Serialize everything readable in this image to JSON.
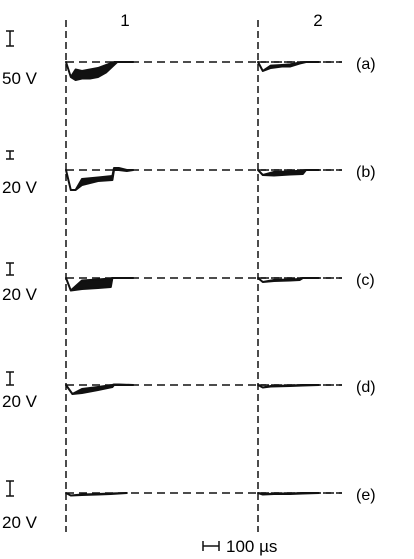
{
  "chart_data": {
    "type": "line",
    "title": "",
    "columns": [
      "1",
      "2"
    ],
    "rows": [
      "(a)",
      "(b)",
      "(c)",
      "(d)",
      "(e)"
    ],
    "vertical_scale_labels": [
      "50 V",
      "20 V",
      "20 V",
      "20 V",
      "20 V"
    ],
    "time_scale_label": "100 µs",
    "grid": false,
    "colors": {
      "trace": "#111111",
      "guide": "#111111",
      "background": "#ffffff"
    },
    "panels": [
      {
        "row": "(a)",
        "column": "1",
        "scale_v": 50,
        "x_us": [
          0,
          30,
          60,
          100,
          150,
          200,
          250,
          300,
          320,
          360,
          420
        ],
        "y_min_v": [
          0,
          -50,
          -60,
          -55,
          -55,
          -50,
          -35,
          -10,
          0,
          0,
          0
        ],
        "y_max_v": [
          0,
          -50,
          -25,
          -30,
          -25,
          -20,
          -10,
          0,
          0,
          0,
          0
        ]
      },
      {
        "row": "(a)",
        "column": "2",
        "scale_v": 50,
        "x_us": [
          0,
          30,
          80,
          150,
          200,
          260,
          300,
          380
        ],
        "y_min_v": [
          0,
          -30,
          -20,
          -15,
          -15,
          -5,
          0,
          0
        ],
        "y_max_v": [
          0,
          -30,
          -12,
          -10,
          -8,
          -2,
          0,
          0
        ]
      },
      {
        "row": "(b)",
        "column": "1",
        "scale_v": 20,
        "x_us": [
          0,
          30,
          60,
          100,
          200,
          290,
          300,
          330,
          380,
          420
        ],
        "y_min_v": [
          0,
          -40,
          -40,
          -30,
          -22,
          -20,
          0,
          0,
          -2,
          0
        ],
        "y_max_v": [
          0,
          -40,
          -40,
          -18,
          -15,
          -12,
          4,
          4,
          0,
          0
        ]
      },
      {
        "row": "(b)",
        "column": "2",
        "scale_v": 20,
        "x_us": [
          0,
          30,
          100,
          200,
          280,
          300,
          380
        ],
        "y_min_v": [
          0,
          -10,
          -11,
          -9,
          -8,
          0,
          0
        ],
        "y_max_v": [
          0,
          -10,
          -4,
          -3,
          -1,
          0,
          0
        ]
      },
      {
        "row": "(c)",
        "column": "1",
        "scale_v": 20,
        "x_us": [
          0,
          30,
          100,
          200,
          280,
          290,
          420
        ],
        "y_min_v": [
          0,
          -25,
          -22,
          -20,
          -18,
          0,
          0
        ],
        "y_max_v": [
          0,
          -25,
          -5,
          -3,
          -1,
          0,
          0
        ]
      },
      {
        "row": "(c)",
        "column": "2",
        "scale_v": 20,
        "x_us": [
          0,
          30,
          100,
          200,
          260,
          280,
          380
        ],
        "y_min_v": [
          0,
          -8,
          -6,
          -5,
          -4,
          0,
          0
        ],
        "y_max_v": [
          0,
          -8,
          -4,
          -3,
          -2,
          0,
          0
        ]
      },
      {
        "row": "(d)",
        "column": "1",
        "scale_v": 20,
        "x_us": [
          0,
          40,
          100,
          200,
          290,
          300,
          330,
          420
        ],
        "y_min_v": [
          0,
          -18,
          -16,
          -10,
          -4,
          0,
          0,
          0
        ],
        "y_max_v": [
          0,
          -18,
          -8,
          -4,
          0,
          1,
          1,
          0
        ]
      },
      {
        "row": "(d)",
        "column": "2",
        "scale_v": 20,
        "x_us": [
          0,
          30,
          80,
          200,
          280,
          380
        ],
        "y_min_v": [
          0,
          -5,
          -3,
          -2,
          -1,
          0
        ],
        "y_max_v": [
          0,
          -5,
          -2,
          -1,
          0,
          0
        ]
      },
      {
        "row": "(e)",
        "column": "1",
        "scale_v": 20,
        "x_us": [
          0,
          30,
          100,
          200,
          280,
          380
        ],
        "y_min_v": [
          0,
          -5,
          -4,
          -3,
          -2,
          0
        ],
        "y_max_v": [
          0,
          -5,
          -3,
          -2,
          -1,
          0
        ]
      },
      {
        "row": "(e)",
        "column": "2",
        "scale_v": 20,
        "x_us": [
          0,
          30,
          100,
          200,
          280,
          380
        ],
        "y_min_v": [
          0,
          -3,
          -2,
          -2,
          -1,
          0
        ],
        "y_max_v": [
          0,
          -3,
          -1,
          -1,
          0,
          0
        ]
      }
    ]
  }
}
